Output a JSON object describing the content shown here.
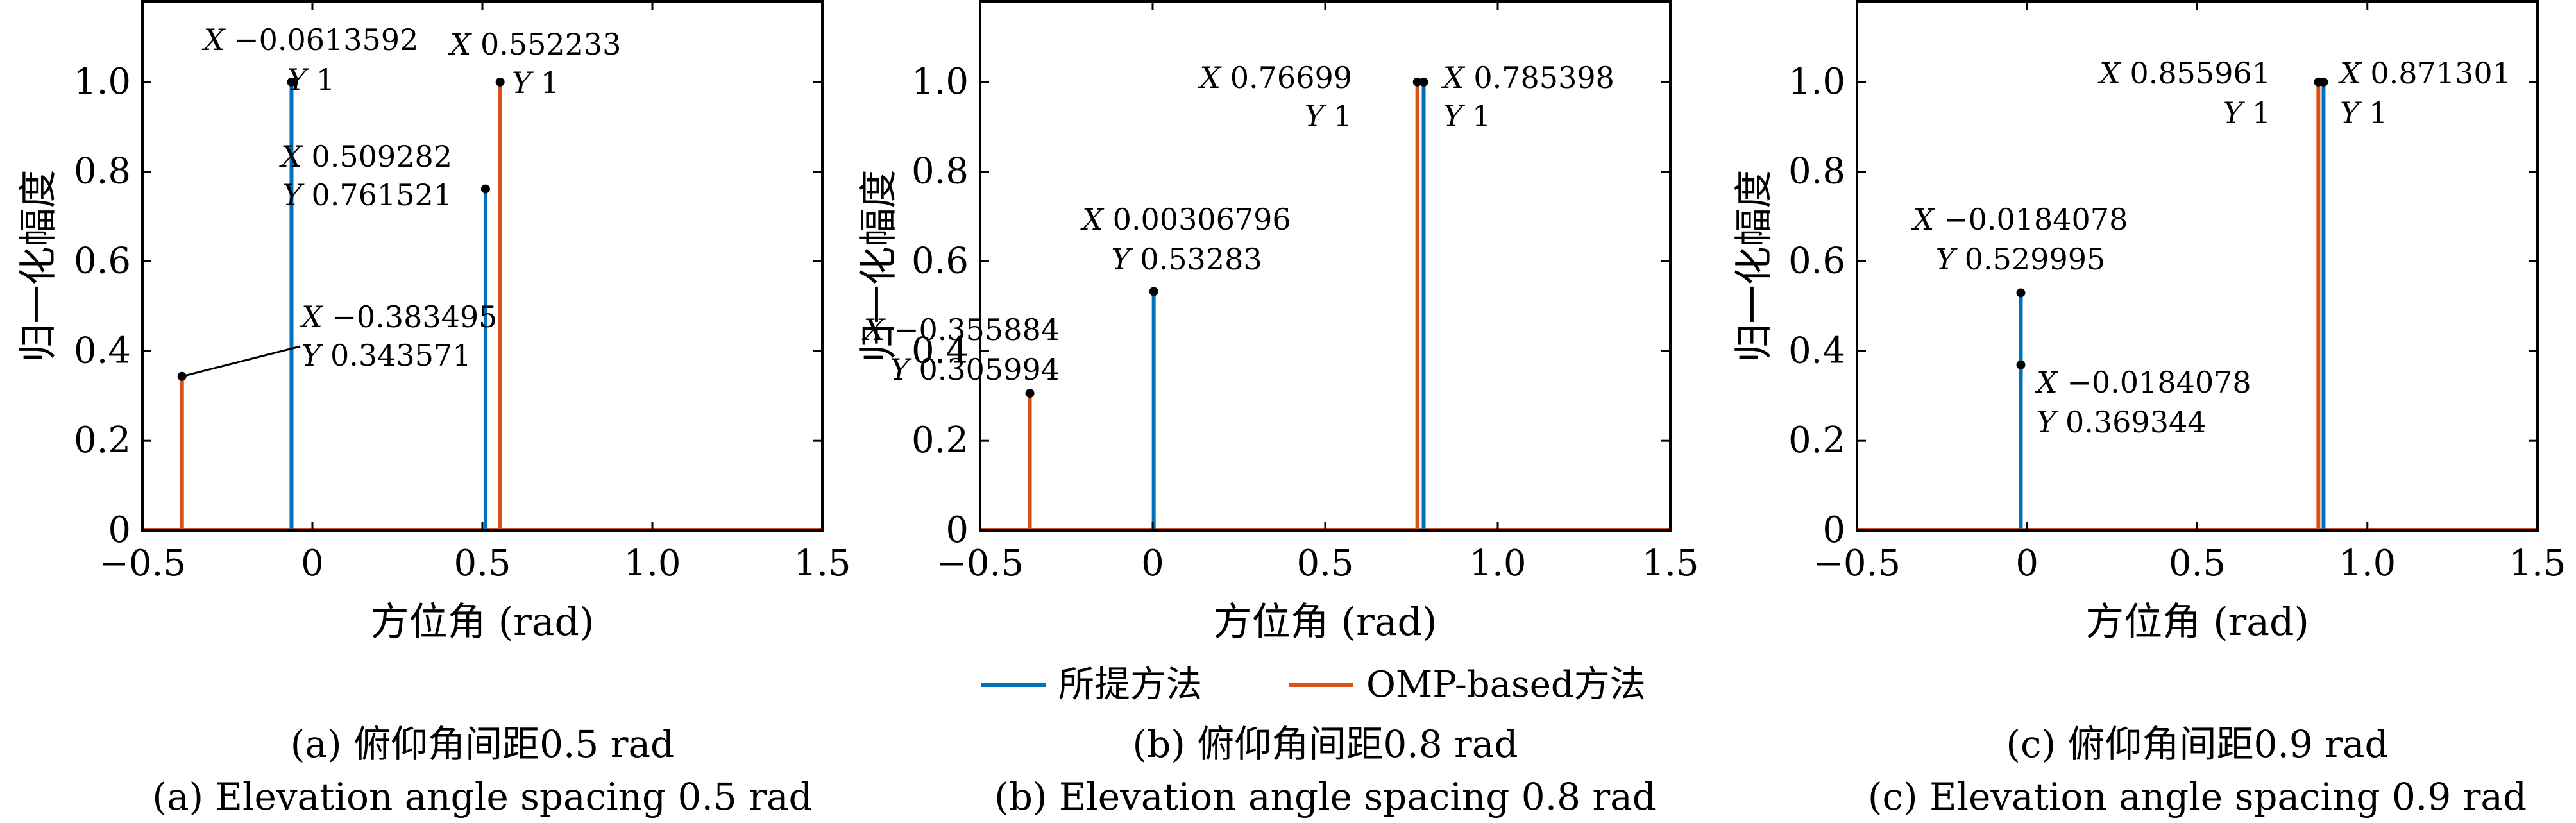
{
  "legend": {
    "items": [
      {
        "label": "所提方法",
        "color": "#0072bd"
      },
      {
        "label": "OMP-based方法",
        "color": "#d95319"
      }
    ]
  },
  "chart_data": [
    {
      "type": "line",
      "xlabel": "方位角 (rad)",
      "ylabel": "归一化幅度",
      "xlim": [
        -0.5,
        1.5
      ],
      "ylim": [
        0,
        1.18
      ],
      "xticks": [
        "−0.5",
        "0",
        "0.5",
        "1.0",
        "1.5"
      ],
      "xtick_values": [
        -0.5,
        0,
        0.5,
        1.0,
        1.5
      ],
      "yticks": [
        "0",
        "0.2",
        "0.4",
        "0.6",
        "0.8",
        "1.0"
      ],
      "ytick_values": [
        0,
        0.2,
        0.4,
        0.6,
        0.8,
        1.0
      ],
      "grid": false,
      "series": [
        {
          "name": "所提方法",
          "color": "#0072bd",
          "x": [
            -0.0613592,
            0.509282
          ],
          "y": [
            1,
            0.761521
          ]
        },
        {
          "name": "OMP-based方法",
          "color": "#d95319",
          "x": [
            -0.383495,
            0.552233
          ],
          "y": [
            0.343571,
            1
          ]
        }
      ],
      "annotations": [
        {
          "x": -0.0613592,
          "y": 1,
          "x_text": "−0.0613592",
          "y_text": "1"
        },
        {
          "x": 0.552233,
          "y": 1,
          "x_text": "0.552233",
          "y_text": "1"
        },
        {
          "x": 0.509282,
          "y": 0.761521,
          "x_text": "0.509282",
          "y_text": "0.761521"
        },
        {
          "x": -0.383495,
          "y": 0.343571,
          "x_text": "−0.383495",
          "y_text": "0.343571"
        }
      ],
      "caption_cn": "(a) 俯仰角间距0.5 rad",
      "caption_en": "(a) Elevation angle spacing 0.5 rad"
    },
    {
      "type": "line",
      "xlabel": "方位角 (rad)",
      "ylabel": "归一化幅度",
      "xlim": [
        -0.5,
        1.5
      ],
      "ylim": [
        0,
        1.18
      ],
      "xticks": [
        "−0.5",
        "0",
        "0.5",
        "1.0",
        "1.5"
      ],
      "xtick_values": [
        -0.5,
        0,
        0.5,
        1.0,
        1.5
      ],
      "yticks": [
        "0",
        "0.2",
        "0.4",
        "0.6",
        "0.8",
        "1.0"
      ],
      "ytick_values": [
        0,
        0.2,
        0.4,
        0.6,
        0.8,
        1.0
      ],
      "grid": false,
      "series": [
        {
          "name": "所提方法",
          "color": "#0072bd",
          "x": [
            0.00306796,
            0.785398
          ],
          "y": [
            0.53283,
            1
          ]
        },
        {
          "name": "OMP-based方法",
          "color": "#d95319",
          "x": [
            -0.355884,
            0.76699
          ],
          "y": [
            0.305994,
            1
          ]
        }
      ],
      "annotations": [
        {
          "x": 0.76699,
          "y": 1,
          "x_text": "0.76699",
          "y_text": "1"
        },
        {
          "x": 0.785398,
          "y": 1,
          "x_text": "0.785398",
          "y_text": "1"
        },
        {
          "x": 0.00306796,
          "y": 0.53283,
          "x_text": "0.00306796",
          "y_text": "0.53283"
        },
        {
          "x": -0.355884,
          "y": 0.305994,
          "x_text": "−0.355884",
          "y_text": "0.305994"
        }
      ],
      "caption_cn": "(b) 俯仰角间距0.8 rad",
      "caption_en": "(b) Elevation angle spacing 0.8 rad"
    },
    {
      "type": "line",
      "xlabel": "方位角 (rad)",
      "ylabel": "归一化幅度",
      "xlim": [
        -0.5,
        1.5
      ],
      "ylim": [
        0,
        1.18
      ],
      "xticks": [
        "−0.5",
        "0",
        "0.5",
        "1.0",
        "1.5"
      ],
      "xtick_values": [
        -0.5,
        0,
        0.5,
        1.0,
        1.5
      ],
      "yticks": [
        "0",
        "0.2",
        "0.4",
        "0.6",
        "0.8",
        "1.0"
      ],
      "ytick_values": [
        0,
        0.2,
        0.4,
        0.6,
        0.8,
        1.0
      ],
      "grid": false,
      "series": [
        {
          "name": "所提方法",
          "color": "#0072bd",
          "x": [
            -0.0184078,
            0.871301
          ],
          "y": [
            0.529995,
            1
          ]
        },
        {
          "name": "OMP-based方法",
          "color": "#d95319",
          "x": [
            -0.0184078,
            0.855961
          ],
          "y": [
            0.369344,
            1
          ]
        }
      ],
      "annotations": [
        {
          "x": 0.855961,
          "y": 1,
          "x_text": "0.855961",
          "y_text": "1"
        },
        {
          "x": 0.871301,
          "y": 1,
          "x_text": "0.871301",
          "y_text": "1"
        },
        {
          "x": -0.0184078,
          "y": 0.529995,
          "x_text": "−0.0184078",
          "y_text": "0.529995"
        },
        {
          "x": -0.0184078,
          "y": 0.369344,
          "x_text": "−0.0184078",
          "y_text": "0.369344"
        }
      ],
      "caption_cn": "(c) 俯仰角间距0.9 rad",
      "caption_en": "(c) Elevation angle spacing 0.9 rad"
    }
  ]
}
